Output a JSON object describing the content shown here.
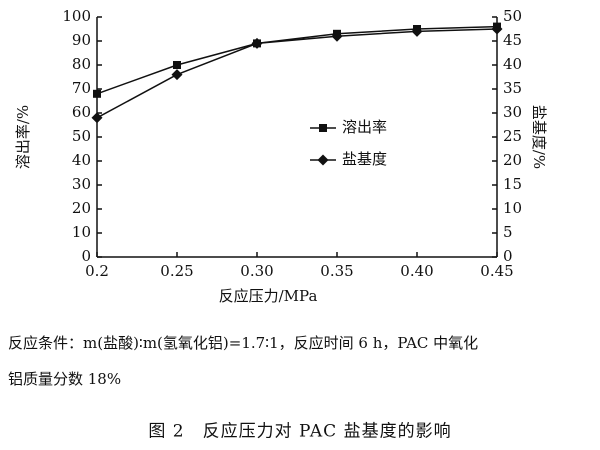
{
  "chart_data": {
    "type": "line",
    "x": [
      0.2,
      0.25,
      0.3,
      0.35,
      0.4,
      0.45
    ],
    "xlim": [
      0.2,
      0.45
    ],
    "xticks": [
      0.2,
      0.25,
      {
        "value": 0.3,
        "label": "0.30"
      },
      0.35,
      {
        "value": 0.4,
        "label": "0.40"
      },
      0.45
    ],
    "ylim": [
      0,
      100
    ],
    "yticks": [
      0,
      10,
      20,
      30,
      40,
      50,
      60,
      70,
      80,
      90,
      100
    ],
    "y2lim": [
      0,
      50
    ],
    "y2ticks": [
      0,
      5,
      10,
      15,
      20,
      25,
      30,
      35,
      40,
      45,
      50
    ],
    "xlabel": "反应压力/MPa",
    "ylabel": "溶出率/%",
    "y2label": "盐基度/%",
    "series": [
      {
        "name": "溶出率",
        "color": "#111111",
        "marker": "square",
        "values": [
          68,
          80,
          89,
          93,
          95,
          96
        ]
      },
      {
        "name": "盐基度",
        "color": "#111111",
        "marker": "diamond",
        "axis": "y2",
        "values": [
          29,
          38,
          44.5,
          46,
          47,
          47.5
        ]
      }
    ],
    "note_lines": [
      "反应条件：m(盐酸)∶m(氢氧化铝)=1.7∶1，反应时间 6 h，PAC 中氧化",
      "铝质量分数 18%"
    ],
    "caption": "图 2　反应压力对 PAC 盐基度的影响"
  }
}
